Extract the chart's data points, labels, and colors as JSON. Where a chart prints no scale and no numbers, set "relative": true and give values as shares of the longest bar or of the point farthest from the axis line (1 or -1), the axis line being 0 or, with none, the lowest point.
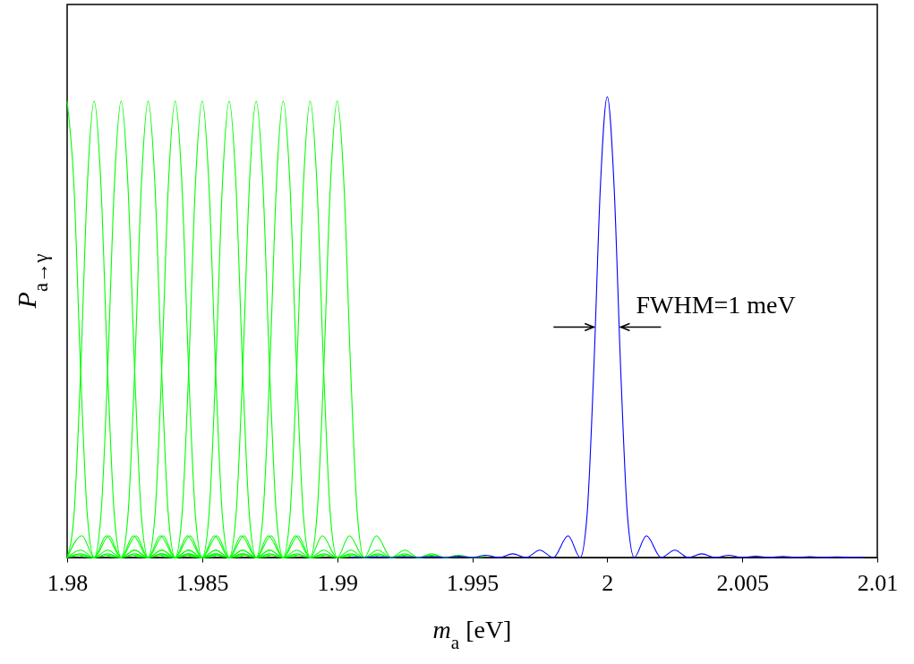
{
  "chart_data": {
    "type": "line",
    "xlabel": "m$_{a}$ [eV]",
    "ylabel": "P$_{a→γ}$",
    "relative": true,
    "xlim": [
      1.98,
      2.01
    ],
    "xticks": [
      1.98,
      1.985,
      1.99,
      1.995,
      2,
      2.005,
      2.01
    ],
    "grid": false,
    "annotations": [
      {
        "text": "FWHM=1 meV",
        "x": 2.0005,
        "y": 0.5
      }
    ],
    "series": [
      {
        "color": "#00ff00",
        "x": [
          1.98,
          1.98025,
          1.9805,
          1.98075,
          1.981,
          1.98145,
          1.982,
          1.9825,
          1.983,
          1.9835,
          1.984,
          1.9845,
          1.985,
          1.9855
        ],
        "values": [
          0.99,
          0.81,
          0.405,
          0.09,
          0,
          0.047,
          0,
          0.016,
          0,
          0.008,
          0,
          0.005,
          0,
          0.003
        ]
      },
      {
        "color": "#00ff00",
        "x": [
          1.98,
          1.98025,
          1.9805,
          1.98075,
          1.981,
          1.98125,
          1.9815,
          1.98175,
          1.982,
          1.98245,
          1.983,
          1.9835,
          1.984,
          1.9845,
          1.985,
          1.9855,
          1.986,
          1.9865
        ],
        "values": [
          0,
          0.09,
          0.405,
          0.81,
          0.99,
          0.81,
          0.405,
          0.09,
          0,
          0.047,
          0,
          0.016,
          0,
          0.008,
          0,
          0.005,
          0,
          0.003
        ]
      },
      {
        "color": "#00ff00",
        "x": [
          1.98,
          1.98055,
          1.981,
          1.98125,
          1.9815,
          1.98175,
          1.982,
          1.98225,
          1.9825,
          1.98275,
          1.983,
          1.98345,
          1.984,
          1.9845,
          1.985,
          1.9855,
          1.986,
          1.9865,
          1.987,
          1.9875
        ],
        "values": [
          0,
          0.047,
          0,
          0.09,
          0.405,
          0.81,
          0.99,
          0.81,
          0.405,
          0.09,
          0,
          0.047,
          0,
          0.016,
          0,
          0.008,
          0,
          0.005,
          0,
          0.003
        ]
      },
      {
        "color": "#00ff00",
        "x": [
          1.98,
          1.9805,
          1.981,
          1.98155,
          1.982,
          1.98225,
          1.9825,
          1.98275,
          1.983,
          1.98325,
          1.9835,
          1.98375,
          1.984,
          1.98445,
          1.985,
          1.9855,
          1.986,
          1.9865,
          1.987,
          1.9875,
          1.988,
          1.9885
        ],
        "values": [
          0,
          0.016,
          0,
          0.047,
          0,
          0.09,
          0.405,
          0.81,
          0.99,
          0.81,
          0.405,
          0.09,
          0,
          0.047,
          0,
          0.016,
          0,
          0.008,
          0,
          0.005,
          0,
          0.003
        ]
      },
      {
        "color": "#00ff00",
        "x": [
          1.98,
          1.9805,
          1.981,
          1.9815,
          1.982,
          1.98255,
          1.983,
          1.98325,
          1.9835,
          1.98375,
          1.984,
          1.98425,
          1.9845,
          1.98475,
          1.985,
          1.98545,
          1.986,
          1.9865,
          1.987,
          1.9875,
          1.988,
          1.9885,
          1.989,
          1.9895
        ],
        "values": [
          0,
          0.008,
          0,
          0.016,
          0,
          0.047,
          0,
          0.09,
          0.405,
          0.81,
          0.99,
          0.81,
          0.405,
          0.09,
          0,
          0.047,
          0,
          0.016,
          0,
          0.008,
          0,
          0.005,
          0,
          0.003
        ]
      },
      {
        "color": "#00ff00",
        "x": [
          1.98,
          1.9805,
          1.981,
          1.9815,
          1.982,
          1.9825,
          1.983,
          1.98355,
          1.984,
          1.98425,
          1.9845,
          1.98475,
          1.985,
          1.98525,
          1.9855,
          1.98575,
          1.986,
          1.98645,
          1.987,
          1.9875,
          1.988,
          1.9885,
          1.989,
          1.9895,
          1.99,
          1.9905
        ],
        "values": [
          0,
          0.005,
          0,
          0.008,
          0,
          0.016,
          0,
          0.047,
          0,
          0.09,
          0.405,
          0.81,
          0.99,
          0.81,
          0.405,
          0.09,
          0,
          0.047,
          0,
          0.016,
          0,
          0.008,
          0,
          0.005,
          0,
          0.003
        ]
      },
      {
        "color": "#00ff00",
        "x": [
          1.9805,
          1.981,
          1.9815,
          1.982,
          1.9825,
          1.983,
          1.9835,
          1.984,
          1.98455,
          1.985,
          1.98525,
          1.9855,
          1.98575,
          1.986,
          1.98625,
          1.9865,
          1.98675,
          1.987,
          1.98745,
          1.988,
          1.9885,
          1.989,
          1.9895,
          1.99,
          1.9905,
          1.991,
          1.9915
        ],
        "values": [
          0.003,
          0,
          0.005,
          0,
          0.008,
          0,
          0.016,
          0,
          0.047,
          0,
          0.09,
          0.405,
          0.81,
          0.99,
          0.81,
          0.405,
          0.09,
          0,
          0.047,
          0,
          0.016,
          0,
          0.008,
          0,
          0.005,
          0,
          0.003
        ]
      },
      {
        "color": "#00ff00",
        "x": [
          1.9815,
          1.982,
          1.9825,
          1.983,
          1.9835,
          1.984,
          1.9845,
          1.985,
          1.98555,
          1.986,
          1.98625,
          1.9865,
          1.98675,
          1.987,
          1.98725,
          1.9875,
          1.98775,
          1.988,
          1.98845,
          1.989,
          1.9895,
          1.99,
          1.9905,
          1.991,
          1.9915,
          1.992,
          1.9925
        ],
        "values": [
          0.003,
          0,
          0.005,
          0,
          0.008,
          0,
          0.016,
          0,
          0.047,
          0,
          0.09,
          0.405,
          0.81,
          0.99,
          0.81,
          0.405,
          0.09,
          0,
          0.047,
          0,
          0.016,
          0,
          0.008,
          0,
          0.005,
          0,
          0.003
        ]
      },
      {
        "color": "#00ff00",
        "x": [
          1.9825,
          1.983,
          1.9835,
          1.984,
          1.9845,
          1.985,
          1.9855,
          1.986,
          1.98655,
          1.987,
          1.98725,
          1.9875,
          1.98775,
          1.988,
          1.98825,
          1.9885,
          1.98875,
          1.989,
          1.98945,
          1.99,
          1.9905,
          1.991,
          1.9915,
          1.992,
          1.9925,
          1.993,
          1.9935
        ],
        "values": [
          0.003,
          0,
          0.005,
          0,
          0.008,
          0,
          0.016,
          0,
          0.047,
          0,
          0.09,
          0.405,
          0.81,
          0.99,
          0.81,
          0.405,
          0.09,
          0,
          0.047,
          0,
          0.016,
          0,
          0.008,
          0,
          0.005,
          0,
          0.003
        ]
      },
      {
        "color": "#00ff00",
        "x": [
          1.9835,
          1.984,
          1.9845,
          1.985,
          1.9855,
          1.986,
          1.9865,
          1.987,
          1.98755,
          1.988,
          1.98825,
          1.9885,
          1.98875,
          1.989,
          1.98925,
          1.9895,
          1.98975,
          1.99,
          1.99045,
          1.991,
          1.9915,
          1.992,
          1.9925,
          1.993,
          1.9935,
          1.994,
          1.9945
        ],
        "values": [
          0.003,
          0,
          0.005,
          0,
          0.008,
          0,
          0.016,
          0,
          0.047,
          0,
          0.09,
          0.405,
          0.81,
          0.99,
          0.81,
          0.405,
          0.09,
          0,
          0.047,
          0,
          0.016,
          0,
          0.008,
          0,
          0.005,
          0,
          0.003
        ]
      },
      {
        "color": "#00ff00",
        "x": [
          1.9845,
          1.985,
          1.9855,
          1.986,
          1.9865,
          1.987,
          1.9875,
          1.988,
          1.98855,
          1.989,
          1.98925,
          1.9895,
          1.98975,
          1.99,
          1.99025,
          1.9905,
          1.99075,
          1.991,
          1.99145,
          1.992,
          1.9925,
          1.993,
          1.9935,
          1.994,
          1.9945,
          1.995,
          1.9955
        ],
        "values": [
          0.003,
          0,
          0.005,
          0,
          0.008,
          0,
          0.016,
          0,
          0.047,
          0,
          0.09,
          0.405,
          0.81,
          0.99,
          0.81,
          0.405,
          0.09,
          0,
          0.047,
          0,
          0.016,
          0,
          0.008,
          0,
          0.005,
          0,
          0.003
        ]
      },
      {
        "color": "#0000ff",
        "x": [
          1.9905,
          1.991,
          1.9915,
          1.992,
          1.9925,
          1.993,
          1.9935,
          1.994,
          1.9945,
          1.995,
          1.9955,
          1.996,
          1.9965,
          1.997,
          1.9975,
          1.998,
          1.99855,
          1.999,
          1.99925,
          1.9995,
          1.99975,
          2,
          2.00025,
          2.0005,
          2.00075,
          2.001,
          2.00145,
          2.002,
          2.0025,
          2.003,
          2.0035,
          2.004,
          2.0045,
          2.005,
          2.0055,
          2.006,
          2.0065,
          2.007,
          2.0075,
          2.008,
          2.0085,
          2.009,
          2.0095
        ],
        "values": [
          0.001,
          0,
          0.0014,
          0,
          0.0018,
          0,
          0.0024,
          0,
          0.003,
          0,
          0.005,
          0,
          0.008,
          0,
          0.016,
          0,
          0.047,
          0,
          0.09,
          0.405,
          0.81,
          1,
          0.81,
          0.405,
          0.09,
          0,
          0.047,
          0,
          0.016,
          0,
          0.008,
          0,
          0.005,
          0,
          0.003,
          0,
          0.0024,
          0,
          0.0018,
          0,
          0.0014,
          0,
          0.001
        ]
      }
    ]
  }
}
